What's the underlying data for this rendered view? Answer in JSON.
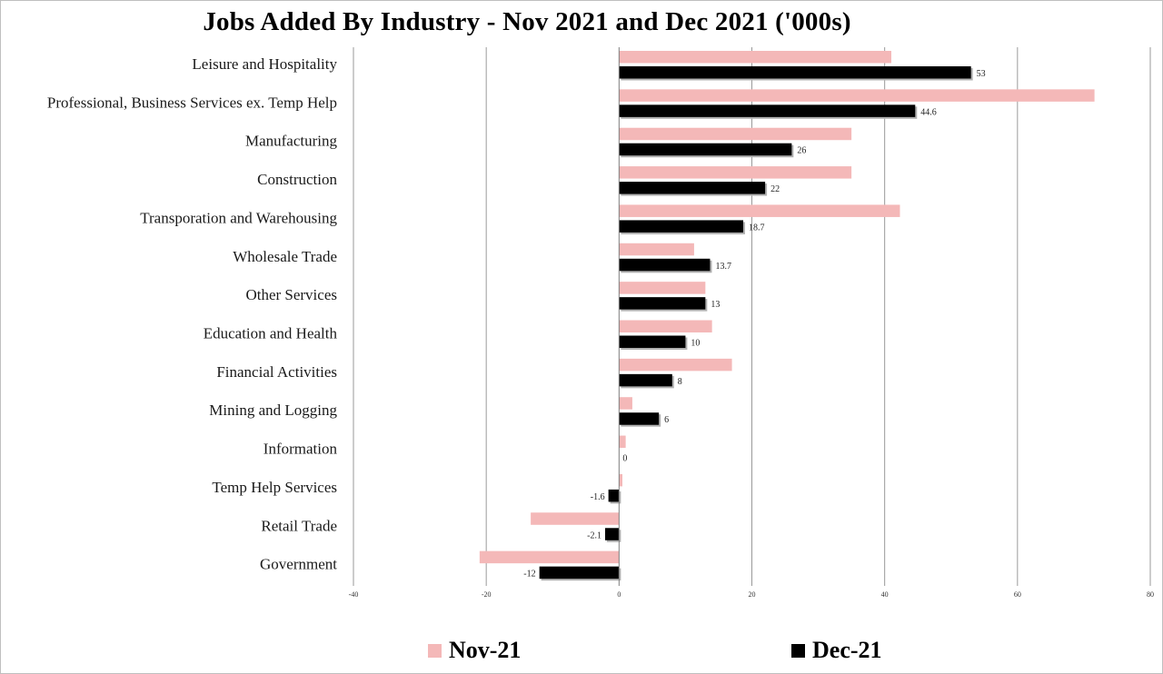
{
  "chart_data": {
    "type": "bar",
    "orientation": "horizontal",
    "title": "Jobs Added By Industry - Nov 2021 and Dec 2021 ('000s)",
    "categories": [
      "Leisure and Hospitality",
      "Professional, Business Services ex. Temp Help",
      "Manufacturing",
      "Construction",
      "Transporation and Warehousing",
      "Wholesale Trade",
      "Other Services",
      "Education and Health",
      "Financial Activities",
      "Mining and Logging",
      "Information",
      "Temp Help Services",
      "Retail Trade",
      "Government"
    ],
    "series": [
      {
        "name": "Nov-21",
        "color": "#f4b8b8",
        "values": [
          41,
          71.6,
          35,
          35,
          42.3,
          11.3,
          13,
          14,
          17,
          2,
          1,
          0.5,
          -13.3,
          -21
        ]
      },
      {
        "name": "Dec-21",
        "color": "#000000",
        "values": [
          53,
          44.6,
          26,
          22,
          18.7,
          13.7,
          13,
          10,
          8,
          6,
          0,
          -1.6,
          -2.1,
          -12
        ]
      }
    ],
    "data_labels": [
      "53",
      "44.6",
      "26",
      "22",
      "18.7",
      "13.7",
      "13",
      "10",
      "8",
      "6",
      "0",
      "-1.6",
      "-2.1",
      "-12"
    ],
    "xlim": [
      -40,
      80
    ],
    "x_ticks": [
      "-40",
      "-20",
      "0",
      "20",
      "40",
      "60",
      "80"
    ],
    "grid": "vertical",
    "legend_position": "bottom"
  }
}
